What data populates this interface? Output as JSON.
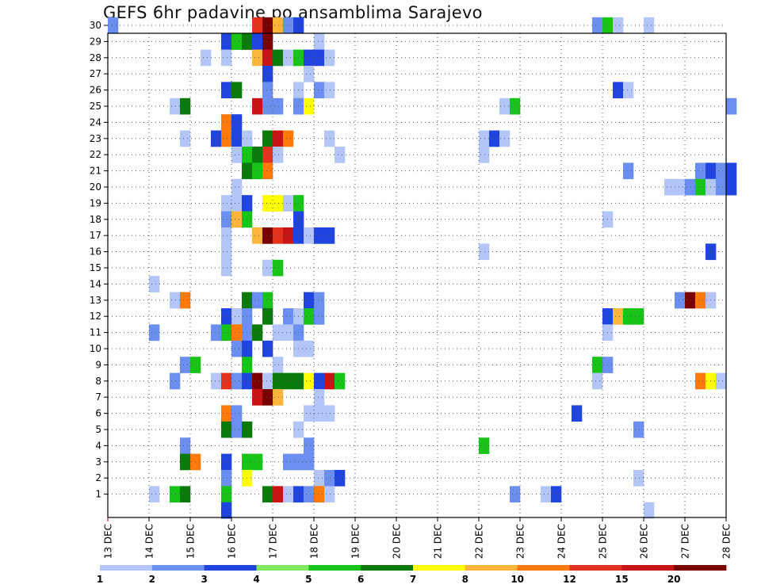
{
  "title": "GEFS 6hr padavine po ansamblima Sarajevo",
  "chart_data": {
    "type": "heatmap",
    "title": "GEFS 6hr padavine po ansamblima Sarajevo",
    "x_ticks": [
      "13 DEC",
      "14 DEC",
      "15 DEC",
      "16 DEC",
      "17 DEC",
      "18 DEC",
      "19 DEC",
      "20 DEC",
      "21 DEC",
      "22 DEC",
      "23 DEC",
      "24 DEC",
      "25 DEC",
      "26 DEC",
      "27 DEC",
      "28 DEC"
    ],
    "y_ticks": [
      "1",
      "2",
      "3",
      "4",
      "5",
      "6",
      "7",
      "8",
      "9",
      "10",
      "11",
      "12",
      "13",
      "14",
      "15",
      "16",
      "17",
      "18",
      "19",
      "20",
      "21",
      "22",
      "23",
      "24",
      "25",
      "26",
      "27",
      "28",
      "29",
      "30"
    ],
    "x_unit": "6hr steps from 13 DEC",
    "y_unit": "ensemble member",
    "grid": true,
    "legend": {
      "labels": [
        "1",
        "2",
        "3",
        "4",
        "5",
        "6",
        "7",
        "8",
        "10",
        "12",
        "15",
        "20"
      ],
      "colors": [
        "#b3c6f7",
        "#6b8ff0",
        "#1f44e0",
        "#7fea5f",
        "#17c417",
        "#0a7a0a",
        "#ffff00",
        "#ffb43c",
        "#ff7a0a",
        "#e4321e",
        "#c81414",
        "#7a0000"
      ],
      "position": "bottom"
    },
    "cells": [
      {
        "member": 30,
        "bin": 0,
        "v": 2
      },
      {
        "member": 30,
        "bin": 14,
        "v": 12
      },
      {
        "member": 30,
        "bin": 15,
        "v": 20
      },
      {
        "member": 30,
        "bin": 16,
        "v": 8
      },
      {
        "member": 30,
        "bin": 17,
        "v": 2
      },
      {
        "member": 30,
        "bin": 18,
        "v": 3
      },
      {
        "member": 30,
        "bin": 47,
        "v": 2
      },
      {
        "member": 30,
        "bin": 48,
        "v": 5
      },
      {
        "member": 30,
        "bin": 49,
        "v": 1
      },
      {
        "member": 30,
        "bin": 52,
        "v": 1
      },
      {
        "member": 29,
        "bin": 11,
        "v": 3
      },
      {
        "member": 29,
        "bin": 12,
        "v": 5
      },
      {
        "member": 29,
        "bin": 13,
        "v": 6
      },
      {
        "member": 29,
        "bin": 14,
        "v": 3
      },
      {
        "member": 29,
        "bin": 15,
        "v": 20
      },
      {
        "member": 29,
        "bin": 20,
        "v": 1
      },
      {
        "member": 28,
        "bin": 9,
        "v": 1
      },
      {
        "member": 28,
        "bin": 11,
        "v": 1
      },
      {
        "member": 28,
        "bin": 14,
        "v": 8
      },
      {
        "member": 28,
        "bin": 15,
        "v": 15
      },
      {
        "member": 28,
        "bin": 16,
        "v": 6
      },
      {
        "member": 28,
        "bin": 17,
        "v": 1
      },
      {
        "member": 28,
        "bin": 18,
        "v": 5
      },
      {
        "member": 28,
        "bin": 19,
        "v": 3
      },
      {
        "member": 28,
        "bin": 20,
        "v": 3
      },
      {
        "member": 28,
        "bin": 21,
        "v": 1
      },
      {
        "member": 27,
        "bin": 15,
        "v": 3
      },
      {
        "member": 27,
        "bin": 19,
        "v": 1
      },
      {
        "member": 26,
        "bin": 11,
        "v": 3
      },
      {
        "member": 26,
        "bin": 12,
        "v": 6
      },
      {
        "member": 26,
        "bin": 15,
        "v": 2
      },
      {
        "member": 26,
        "bin": 18,
        "v": 1
      },
      {
        "member": 26,
        "bin": 20,
        "v": 2
      },
      {
        "member": 26,
        "bin": 21,
        "v": 1
      },
      {
        "member": 26,
        "bin": 49,
        "v": 3
      },
      {
        "member": 26,
        "bin": 50,
        "v": 1
      },
      {
        "member": 25,
        "bin": 6,
        "v": 1
      },
      {
        "member": 25,
        "bin": 7,
        "v": 6
      },
      {
        "member": 25,
        "bin": 14,
        "v": 15
      },
      {
        "member": 25,
        "bin": 15,
        "v": 2
      },
      {
        "member": 25,
        "bin": 16,
        "v": 2
      },
      {
        "member": 25,
        "bin": 18,
        "v": 2
      },
      {
        "member": 25,
        "bin": 19,
        "v": 7
      },
      {
        "member": 25,
        "bin": 38,
        "v": 1
      },
      {
        "member": 25,
        "bin": 39,
        "v": 5
      },
      {
        "member": 25,
        "bin": 60,
        "v": 2
      },
      {
        "member": 24,
        "bin": 11,
        "v": 10
      },
      {
        "member": 24,
        "bin": 12,
        "v": 3
      },
      {
        "member": 23,
        "bin": 7,
        "v": 1
      },
      {
        "member": 23,
        "bin": 10,
        "v": 3
      },
      {
        "member": 23,
        "bin": 11,
        "v": 10
      },
      {
        "member": 23,
        "bin": 12,
        "v": 3
      },
      {
        "member": 23,
        "bin": 13,
        "v": 1
      },
      {
        "member": 23,
        "bin": 15,
        "v": 6
      },
      {
        "member": 23,
        "bin": 16,
        "v": 15
      },
      {
        "member": 23,
        "bin": 17,
        "v": 10
      },
      {
        "member": 23,
        "bin": 21,
        "v": 1
      },
      {
        "member": 23,
        "bin": 36,
        "v": 1
      },
      {
        "member": 23,
        "bin": 37,
        "v": 3
      },
      {
        "member": 23,
        "bin": 38,
        "v": 1
      },
      {
        "member": 22,
        "bin": 12,
        "v": 1
      },
      {
        "member": 22,
        "bin": 13,
        "v": 5
      },
      {
        "member": 22,
        "bin": 14,
        "v": 6
      },
      {
        "member": 22,
        "bin": 15,
        "v": 12
      },
      {
        "member": 22,
        "bin": 16,
        "v": 1
      },
      {
        "member": 22,
        "bin": 22,
        "v": 1
      },
      {
        "member": 22,
        "bin": 36,
        "v": 1
      },
      {
        "member": 21,
        "bin": 13,
        "v": 6
      },
      {
        "member": 21,
        "bin": 14,
        "v": 5
      },
      {
        "member": 21,
        "bin": 15,
        "v": 10
      },
      {
        "member": 21,
        "bin": 50,
        "v": 2
      },
      {
        "member": 21,
        "bin": 57,
        "v": 2
      },
      {
        "member": 21,
        "bin": 58,
        "v": 3
      },
      {
        "member": 21,
        "bin": 59,
        "v": 2
      },
      {
        "member": 21,
        "bin": 60,
        "v": 3
      },
      {
        "member": 20,
        "bin": 12,
        "v": 1
      },
      {
        "member": 20,
        "bin": 54,
        "v": 1
      },
      {
        "member": 20,
        "bin": 55,
        "v": 1
      },
      {
        "member": 20,
        "bin": 56,
        "v": 2
      },
      {
        "member": 20,
        "bin": 57,
        "v": 5
      },
      {
        "member": 20,
        "bin": 58,
        "v": 1
      },
      {
        "member": 20,
        "bin": 59,
        "v": 2
      },
      {
        "member": 20,
        "bin": 60,
        "v": 3
      },
      {
        "member": 19,
        "bin": 11,
        "v": 1
      },
      {
        "member": 19,
        "bin": 12,
        "v": 1
      },
      {
        "member": 19,
        "bin": 13,
        "v": 3
      },
      {
        "member": 19,
        "bin": 15,
        "v": 7
      },
      {
        "member": 19,
        "bin": 16,
        "v": 7
      },
      {
        "member": 19,
        "bin": 17,
        "v": 1
      },
      {
        "member": 19,
        "bin": 18,
        "v": 5
      },
      {
        "member": 18,
        "bin": 11,
        "v": 2
      },
      {
        "member": 18,
        "bin": 12,
        "v": 8
      },
      {
        "member": 18,
        "bin": 13,
        "v": 5
      },
      {
        "member": 18,
        "bin": 18,
        "v": 3
      },
      {
        "member": 18,
        "bin": 48,
        "v": 1
      },
      {
        "member": 17,
        "bin": 11,
        "v": 1
      },
      {
        "member": 17,
        "bin": 14,
        "v": 8
      },
      {
        "member": 17,
        "bin": 15,
        "v": 20
      },
      {
        "member": 17,
        "bin": 16,
        "v": 12
      },
      {
        "member": 17,
        "bin": 17,
        "v": 15
      },
      {
        "member": 17,
        "bin": 18,
        "v": 3
      },
      {
        "member": 17,
        "bin": 19,
        "v": 1
      },
      {
        "member": 17,
        "bin": 20,
        "v": 3
      },
      {
        "member": 17,
        "bin": 21,
        "v": 3
      },
      {
        "member": 16,
        "bin": 11,
        "v": 1
      },
      {
        "member": 16,
        "bin": 36,
        "v": 1
      },
      {
        "member": 16,
        "bin": 58,
        "v": 3
      },
      {
        "member": 15,
        "bin": 11,
        "v": 1
      },
      {
        "member": 15,
        "bin": 15,
        "v": 1
      },
      {
        "member": 15,
        "bin": 16,
        "v": 5
      },
      {
        "member": 14,
        "bin": 4,
        "v": 1
      },
      {
        "member": 13,
        "bin": 6,
        "v": 1
      },
      {
        "member": 13,
        "bin": 7,
        "v": 10
      },
      {
        "member": 13,
        "bin": 13,
        "v": 6
      },
      {
        "member": 13,
        "bin": 14,
        "v": 2
      },
      {
        "member": 13,
        "bin": 15,
        "v": 5
      },
      {
        "member": 13,
        "bin": 19,
        "v": 3
      },
      {
        "member": 13,
        "bin": 20,
        "v": 2
      },
      {
        "member": 13,
        "bin": 55,
        "v": 2
      },
      {
        "member": 13,
        "bin": 56,
        "v": 20
      },
      {
        "member": 13,
        "bin": 57,
        "v": 10
      },
      {
        "member": 13,
        "bin": 58,
        "v": 1
      },
      {
        "member": 12,
        "bin": 11,
        "v": 3
      },
      {
        "member": 12,
        "bin": 12,
        "v": 1
      },
      {
        "member": 12,
        "bin": 13,
        "v": 2
      },
      {
        "member": 12,
        "bin": 15,
        "v": 6
      },
      {
        "member": 12,
        "bin": 17,
        "v": 2
      },
      {
        "member": 12,
        "bin": 18,
        "v": 1
      },
      {
        "member": 12,
        "bin": 19,
        "v": 5
      },
      {
        "member": 12,
        "bin": 20,
        "v": 2
      },
      {
        "member": 12,
        "bin": 48,
        "v": 3
      },
      {
        "member": 12,
        "bin": 49,
        "v": 8
      },
      {
        "member": 12,
        "bin": 50,
        "v": 5
      },
      {
        "member": 12,
        "bin": 51,
        "v": 5
      },
      {
        "member": 11,
        "bin": 4,
        "v": 2
      },
      {
        "member": 11,
        "bin": 10,
        "v": 2
      },
      {
        "member": 11,
        "bin": 11,
        "v": 5
      },
      {
        "member": 11,
        "bin": 12,
        "v": 10
      },
      {
        "member": 11,
        "bin": 13,
        "v": 2
      },
      {
        "member": 11,
        "bin": 14,
        "v": 6
      },
      {
        "member": 11,
        "bin": 16,
        "v": 1
      },
      {
        "member": 11,
        "bin": 17,
        "v": 1
      },
      {
        "member": 11,
        "bin": 18,
        "v": 2
      },
      {
        "member": 11,
        "bin": 48,
        "v": 1
      },
      {
        "member": 10,
        "bin": 12,
        "v": 2
      },
      {
        "member": 10,
        "bin": 13,
        "v": 3
      },
      {
        "member": 10,
        "bin": 15,
        "v": 3
      },
      {
        "member": 10,
        "bin": 18,
        "v": 1
      },
      {
        "member": 10,
        "bin": 19,
        "v": 1
      },
      {
        "member": 9,
        "bin": 7,
        "v": 2
      },
      {
        "member": 9,
        "bin": 8,
        "v": 5
      },
      {
        "member": 9,
        "bin": 13,
        "v": 5
      },
      {
        "member": 9,
        "bin": 16,
        "v": 1
      },
      {
        "member": 9,
        "bin": 47,
        "v": 5
      },
      {
        "member": 9,
        "bin": 48,
        "v": 2
      },
      {
        "member": 8,
        "bin": 6,
        "v": 2
      },
      {
        "member": 8,
        "bin": 10,
        "v": 1
      },
      {
        "member": 8,
        "bin": 11,
        "v": 12
      },
      {
        "member": 8,
        "bin": 12,
        "v": 2
      },
      {
        "member": 8,
        "bin": 13,
        "v": 3
      },
      {
        "member": 8,
        "bin": 14,
        "v": 20
      },
      {
        "member": 8,
        "bin": 15,
        "v": 1
      },
      {
        "member": 8,
        "bin": 16,
        "v": 6
      },
      {
        "member": 8,
        "bin": 17,
        "v": 6
      },
      {
        "member": 8,
        "bin": 18,
        "v": 6
      },
      {
        "member": 8,
        "bin": 19,
        "v": 7
      },
      {
        "member": 8,
        "bin": 20,
        "v": 3
      },
      {
        "member": 8,
        "bin": 21,
        "v": 15
      },
      {
        "member": 8,
        "bin": 22,
        "v": 5
      },
      {
        "member": 8,
        "bin": 47,
        "v": 1
      },
      {
        "member": 8,
        "bin": 57,
        "v": 10
      },
      {
        "member": 8,
        "bin": 58,
        "v": 7
      },
      {
        "member": 8,
        "bin": 59,
        "v": 1
      },
      {
        "member": 7,
        "bin": 14,
        "v": 15
      },
      {
        "member": 7,
        "bin": 15,
        "v": 20
      },
      {
        "member": 7,
        "bin": 16,
        "v": 8
      },
      {
        "member": 7,
        "bin": 20,
        "v": 1
      },
      {
        "member": 6,
        "bin": 11,
        "v": 10
      },
      {
        "member": 6,
        "bin": 12,
        "v": 2
      },
      {
        "member": 6,
        "bin": 19,
        "v": 1
      },
      {
        "member": 6,
        "bin": 20,
        "v": 1
      },
      {
        "member": 6,
        "bin": 21,
        "v": 1
      },
      {
        "member": 6,
        "bin": 45,
        "v": 3
      },
      {
        "member": 5,
        "bin": 11,
        "v": 6
      },
      {
        "member": 5,
        "bin": 12,
        "v": 2
      },
      {
        "member": 5,
        "bin": 13,
        "v": 6
      },
      {
        "member": 5,
        "bin": 18,
        "v": 1
      },
      {
        "member": 5,
        "bin": 51,
        "v": 2
      },
      {
        "member": 4,
        "bin": 7,
        "v": 2
      },
      {
        "member": 4,
        "bin": 19,
        "v": 2
      },
      {
        "member": 4,
        "bin": 36,
        "v": 5
      },
      {
        "member": 3,
        "bin": 7,
        "v": 6
      },
      {
        "member": 3,
        "bin": 8,
        "v": 10
      },
      {
        "member": 3,
        "bin": 11,
        "v": 3
      },
      {
        "member": 3,
        "bin": 13,
        "v": 5
      },
      {
        "member": 3,
        "bin": 14,
        "v": 5
      },
      {
        "member": 3,
        "bin": 17,
        "v": 2
      },
      {
        "member": 3,
        "bin": 18,
        "v": 2
      },
      {
        "member": 3,
        "bin": 19,
        "v": 2
      },
      {
        "member": 2,
        "bin": 11,
        "v": 2
      },
      {
        "member": 2,
        "bin": 13,
        "v": 7
      },
      {
        "member": 2,
        "bin": 20,
        "v": 1
      },
      {
        "member": 2,
        "bin": 21,
        "v": 2
      },
      {
        "member": 2,
        "bin": 22,
        "v": 3
      },
      {
        "member": 2,
        "bin": 51,
        "v": 1
      },
      {
        "member": 1,
        "bin": 4,
        "v": 1
      },
      {
        "member": 1,
        "bin": 6,
        "v": 5
      },
      {
        "member": 1,
        "bin": 7,
        "v": 6
      },
      {
        "member": 1,
        "bin": 11,
        "v": 5
      },
      {
        "member": 1,
        "bin": 15,
        "v": 6
      },
      {
        "member": 1,
        "bin": 16,
        "v": 15
      },
      {
        "member": 1,
        "bin": 17,
        "v": 1
      },
      {
        "member": 1,
        "bin": 18,
        "v": 3
      },
      {
        "member": 1,
        "bin": 19,
        "v": 2
      },
      {
        "member": 1,
        "bin": 20,
        "v": 10
      },
      {
        "member": 1,
        "bin": 21,
        "v": 1
      },
      {
        "member": 1,
        "bin": 39,
        "v": 2
      },
      {
        "member": 1,
        "bin": 42,
        "v": 1
      },
      {
        "member": 1,
        "bin": 43,
        "v": 3
      },
      {
        "member": 0,
        "bin": 11,
        "v": 3
      },
      {
        "member": 0,
        "bin": 52,
        "v": 1
      }
    ]
  }
}
